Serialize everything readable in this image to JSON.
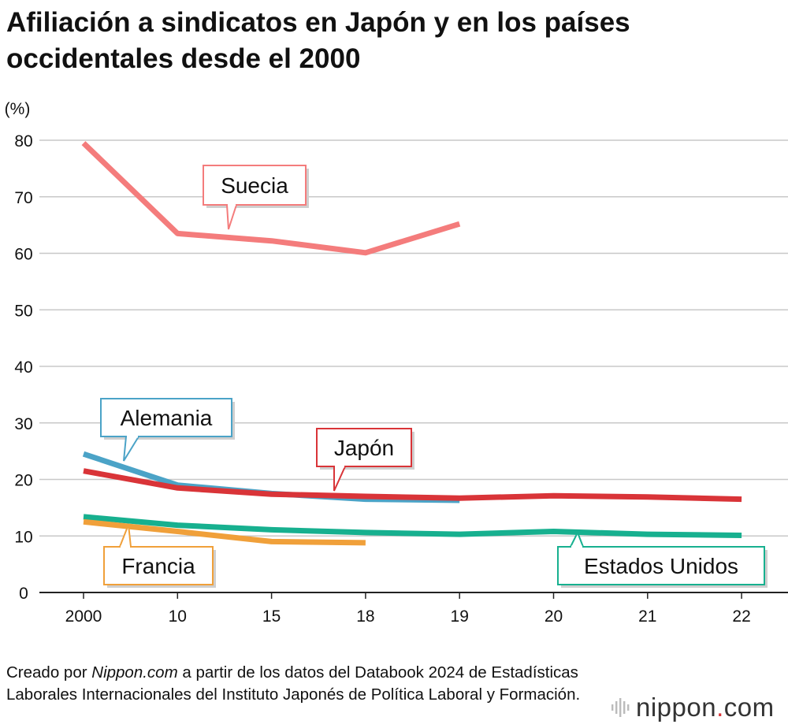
{
  "title": "Afiliación a sindicatos en Japón y en los países occidentales desde el 2000",
  "source": {
    "prefix": "Creado por ",
    "site": "Nippon.com",
    "text": " a partir de los datos del Databook 2024 de Estadísticas Laborales Internacionales del Instituto Japonés de Política Laboral y Formación."
  },
  "logo": {
    "brand_left": "nippon",
    "brand_dot": ".",
    "brand_right": "com",
    "icon": "sound-bars-icon"
  },
  "chart_data": {
    "type": "line",
    "ylabel": "(%)",
    "ylim": [
      0,
      80
    ],
    "yticks": [
      0,
      10,
      20,
      30,
      40,
      50,
      60,
      70,
      80
    ],
    "categories": [
      "2000",
      "10",
      "15",
      "18",
      "19",
      "20",
      "21",
      "22"
    ],
    "grid": true,
    "series": [
      {
        "name": "Suecia",
        "color": "#f47c7c",
        "values": [
          79.5,
          63.5,
          62.2,
          60.1,
          65.2,
          null,
          null,
          null
        ]
      },
      {
        "name": "Alemania",
        "color": "#4ba3c7",
        "values": [
          24.5,
          19.0,
          17.5,
          16.5,
          16.3,
          null,
          null,
          null
        ]
      },
      {
        "name": "Japón",
        "color": "#d93438",
        "values": [
          21.5,
          18.5,
          17.4,
          17.0,
          16.7,
          17.1,
          16.9,
          16.5
        ]
      },
      {
        "name": "Estados Unidos",
        "color": "#17b08f",
        "values": [
          13.4,
          11.9,
          11.1,
          10.6,
          10.3,
          10.8,
          10.3,
          10.1
        ]
      },
      {
        "name": "Francia",
        "color": "#f0a03a",
        "values": [
          12.5,
          10.8,
          9.0,
          8.8,
          null,
          null,
          null,
          null
        ]
      }
    ]
  }
}
